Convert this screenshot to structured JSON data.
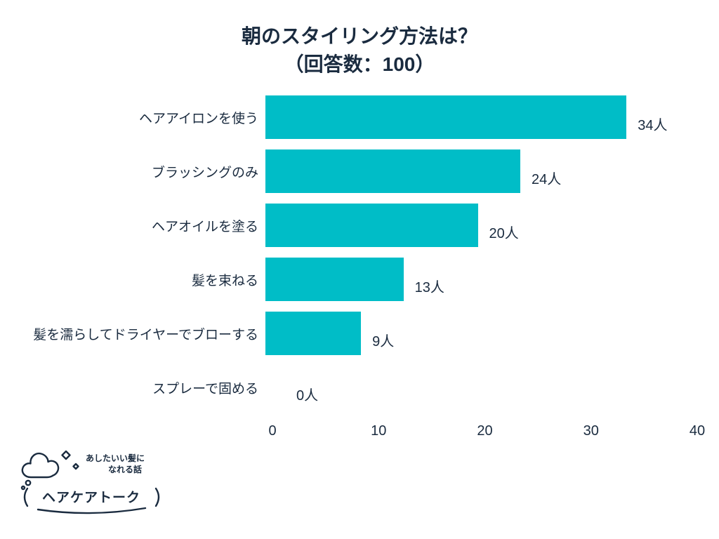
{
  "chart_data": {
    "type": "bar",
    "orientation": "horizontal",
    "title": "朝のスタイリング方法は？",
    "subtitle": "（回答数：100）",
    "categories": [
      "ヘアアイロンを使う",
      "ブラッシングのみ",
      "ヘアオイルを塗る",
      "髪を束ねる",
      "髪を濡らしてドライヤーでブローする",
      "スプレーで固める"
    ],
    "values": [
      34,
      24,
      20,
      13,
      9,
      0
    ],
    "value_labels": [
      "34人",
      "24人",
      "20人",
      "13人",
      "9人",
      "0人"
    ],
    "unit": "人",
    "xlabel": "",
    "ylabel": "",
    "xlim": [
      0,
      40
    ],
    "x_ticks": [
      "0",
      "10",
      "20",
      "30",
      "40"
    ],
    "bar_color": "#00BDC7",
    "text_color": "#1a2b3f",
    "grid": false,
    "legend_position": "none"
  },
  "logo": {
    "tagline_line1": "あしたいい髪に",
    "tagline_line2": "なれる話",
    "brand": "ヘアケアトーク",
    "cloud_icon": "cloud-with-sparkles-icon"
  }
}
